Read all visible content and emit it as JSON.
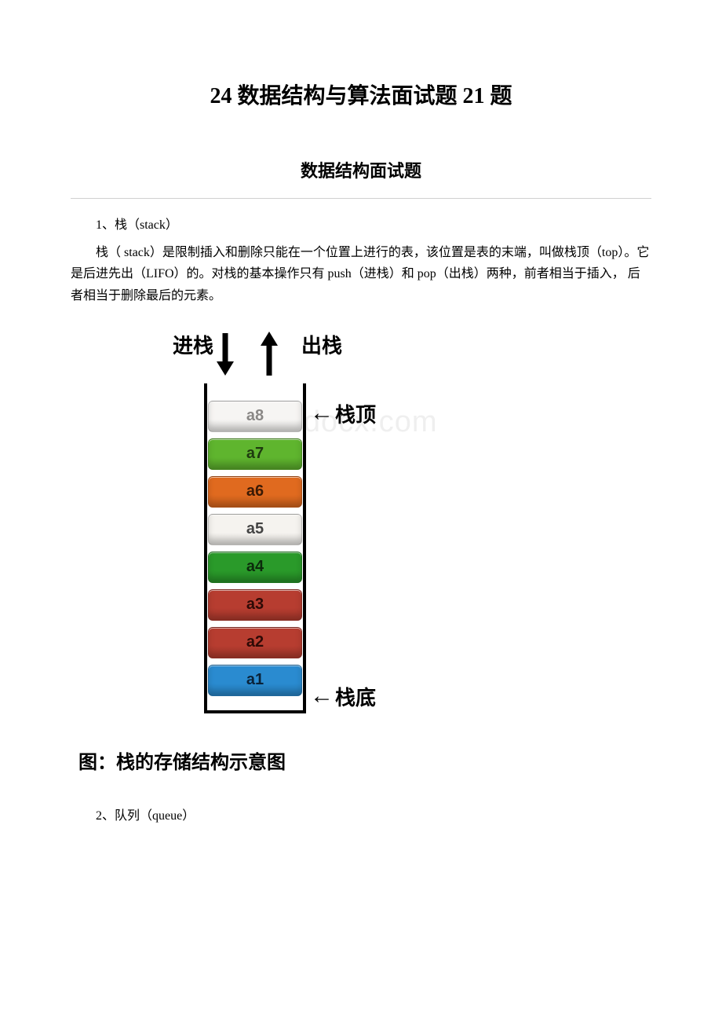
{
  "page_title": "24 数据结构与算法面试题 21 题",
  "subtitle": "数据结构面试题",
  "section1": {
    "heading": "1、栈（stack）",
    "paragraph": "栈（ stack）是限制插入和删除只能在一个位置上进行的表，该位置是表的末端，叫做栈顶（top）。它是后进先出（LIFO）的。对栈的基本操作只有 push（进栈）和 pop（出栈）两种，前者相当于插入， 后者相当于删除最后的元素。"
  },
  "stack_diagram": {
    "push_label": "进栈",
    "pop_label": "出栈",
    "top_label": "栈顶",
    "bottom_label": "栈底",
    "watermark": "www.bdocx.com",
    "cells": [
      {
        "label": "a8",
        "bg": "#f6f5f3",
        "fg": "#8a8886"
      },
      {
        "label": "a7",
        "bg": "#5fb52e",
        "fg": "#1e3a0f"
      },
      {
        "label": "a6",
        "bg": "#e06a1f",
        "fg": "#3a1a05"
      },
      {
        "label": "a5",
        "bg": "#f5f3ef",
        "fg": "#444444"
      },
      {
        "label": "a4",
        "bg": "#2a9a2a",
        "fg": "#0c2b0c"
      },
      {
        "label": "a3",
        "bg": "#b73d30",
        "fg": "#2e0a06"
      },
      {
        "label": "a2",
        "bg": "#b73d30",
        "fg": "#2e0a06"
      },
      {
        "label": "a1",
        "bg": "#2a8bd0",
        "fg": "#0a2238"
      }
    ],
    "caption": "图：栈的存储结构示意图"
  },
  "section2": {
    "heading": "2、队列（queue）"
  }
}
